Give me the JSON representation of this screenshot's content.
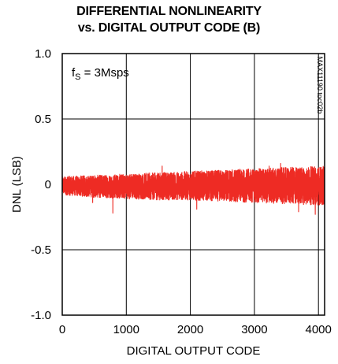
{
  "chart_data": {
    "type": "line",
    "title_line1": "DIFFERENTIAL NONLINEARITY",
    "title_line2": "vs. DIGITAL OUTPUT CODE (B)",
    "xlabel": "DIGITAL OUTPUT CODE",
    "ylabel": "DNL (LSB)",
    "xlim": [
      0,
      4096
    ],
    "ylim": [
      -1.0,
      1.0
    ],
    "x_ticks": [
      0,
      1000,
      2000,
      3000,
      4000
    ],
    "x_tick_labels": [
      "0",
      "1000",
      "2000",
      "3000",
      "4000"
    ],
    "y_ticks": [
      1.0,
      0.5,
      0,
      -0.5,
      -1.0
    ],
    "y_tick_labels": [
      "1.0",
      "0.5",
      "0",
      "-0.5",
      "-1.0"
    ],
    "grid": true,
    "annotation_main": "f",
    "annotation_sub": "S",
    "annotation_rest": " = 3Msps",
    "side_code": "MAX11190 toc02b",
    "series": [
      {
        "color": "#ee2b24",
        "band": [
          {
            "x": 0,
            "min": -0.08,
            "max": 0.06
          },
          {
            "x": 500,
            "min": -0.1,
            "max": 0.07
          },
          {
            "x": 1000,
            "min": -0.11,
            "max": 0.08
          },
          {
            "x": 1500,
            "min": -0.12,
            "max": 0.09
          },
          {
            "x": 2000,
            "min": -0.12,
            "max": 0.1
          },
          {
            "x": 2500,
            "min": -0.13,
            "max": 0.11
          },
          {
            "x": 3000,
            "min": -0.14,
            "max": 0.12
          },
          {
            "x": 3500,
            "min": -0.15,
            "max": 0.13
          },
          {
            "x": 4095,
            "min": -0.16,
            "max": 0.14
          }
        ],
        "spikes": [
          {
            "x": 475,
            "y": -0.14
          },
          {
            "x": 790,
            "y": -0.22
          },
          {
            "x": 1560,
            "y": 0.14
          },
          {
            "x": 2100,
            "y": -0.19
          },
          {
            "x": 3230,
            "y": 0.14
          },
          {
            "x": 3410,
            "y": 0.16
          },
          {
            "x": 3690,
            "y": -0.21
          },
          {
            "x": 3950,
            "y": -0.23
          }
        ]
      }
    ]
  }
}
